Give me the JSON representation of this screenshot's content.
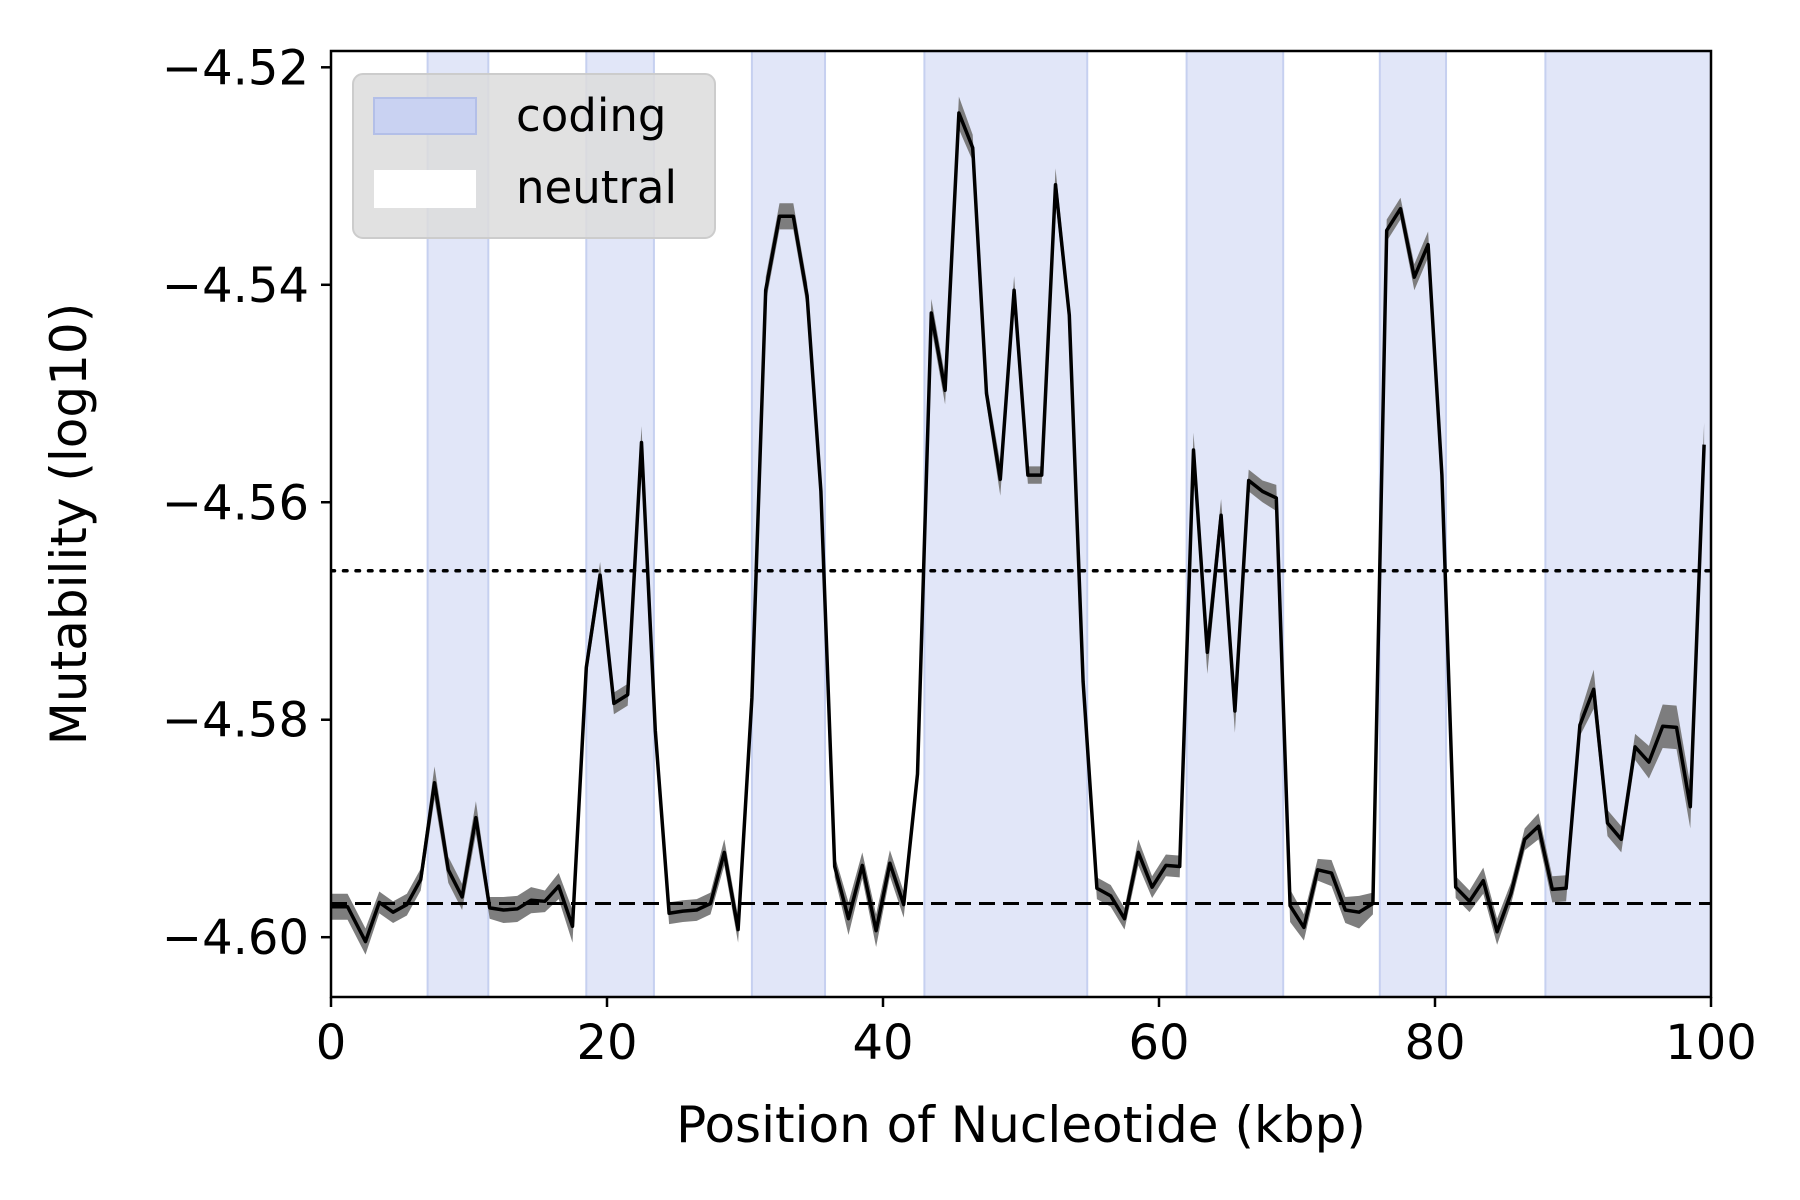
{
  "chart_data": {
    "type": "line",
    "title": "",
    "xlabel": "Position of Nucleotide (kbp)",
    "ylabel": "Mutability (log10)",
    "xlim": [
      0,
      100
    ],
    "ylim": [
      -4.6055,
      -4.5185
    ],
    "xticks": [
      0,
      20,
      40,
      60,
      80,
      100
    ],
    "xtick_labels": [
      "0",
      "20",
      "40",
      "60",
      "80",
      "100"
    ],
    "yticks": [
      -4.52,
      -4.54,
      -4.56,
      -4.58,
      -4.6
    ],
    "ytick_labels": [
      "−4.52",
      "−4.54",
      "−4.56",
      "−4.58",
      "−4.60"
    ],
    "grid": false,
    "legend": {
      "placement": "upper-left",
      "entries": [
        {
          "label": "coding",
          "color": "#c9d2f2"
        },
        {
          "label": "neutral",
          "color": "#ffffff"
        }
      ]
    },
    "coding_regions": [
      [
        7,
        11.4
      ],
      [
        18.5,
        23.4
      ],
      [
        30.5,
        35.8
      ],
      [
        43,
        54.8
      ],
      [
        62,
        69
      ],
      [
        76,
        80.8
      ],
      [
        88,
        100
      ]
    ],
    "reference_lines": [
      {
        "y": -4.5663,
        "style": "dotted"
      },
      {
        "y": -4.5969,
        "style": "dashed"
      }
    ],
    "colors": {
      "coding_fill": "#e1e6f8",
      "coding_edge": "#c6d0f0",
      "band": "#777777",
      "line": "#000000"
    },
    "series": [
      {
        "x": [
          0,
          1.2,
          2.5,
          3.5,
          4.5,
          5.5,
          6.5,
          7.5,
          8.5,
          9.5,
          10.5,
          11.5,
          12.5,
          13.5,
          14.5,
          15.5,
          16.5,
          17.5,
          18.5,
          19.5,
          20.5,
          21.5,
          22.5,
          23.5,
          24.5,
          25.5,
          26.5,
          27.5,
          28.5,
          29.5,
          30.5,
          31.5,
          32.5,
          33.5,
          34.5,
          35.5,
          36.5,
          37.5,
          38.5,
          39.5,
          40.5,
          41.5,
          42.5,
          43.5,
          44.5,
          45.5,
          46.5,
          47.5,
          48.5,
          49.5,
          50.5,
          51.5,
          52.5,
          53.5,
          54.5,
          55.5,
          56.5,
          57.5,
          58.5,
          59.5,
          60.5,
          61.5,
          62.5,
          63.5,
          64.5,
          65.5,
          66.5,
          67.5,
          68.5,
          69.5,
          70.5,
          71.5,
          72.5,
          73.5,
          74.5,
          75.5,
          76.5,
          77.5,
          78.5,
          79.5,
          80.5,
          81.5,
          82.5,
          83.5,
          84.5,
          85.5,
          86.5,
          87.5,
          88.5,
          89.5,
          90.5,
          91.5,
          92.5,
          93.5,
          94.5,
          95.5,
          96.5,
          97.5,
          98.5,
          99.5
        ],
        "values": [
          -4.5972,
          -4.5972,
          -4.6004,
          -4.5968,
          -4.5977,
          -4.597,
          -4.5947,
          -4.5858,
          -4.5938,
          -4.5963,
          -4.589,
          -4.5973,
          -4.5975,
          -4.5974,
          -4.5966,
          -4.5967,
          -4.5953,
          -4.599,
          -4.5752,
          -4.5667,
          -4.5785,
          -4.5777,
          -4.5545,
          -4.581,
          -4.5978,
          -4.5976,
          -4.5975,
          -4.5969,
          -4.5922,
          -4.5993,
          -4.578,
          -4.5405,
          -4.5337,
          -4.5337,
          -4.541,
          -4.559,
          -4.5935,
          -4.5983,
          -4.5934,
          -4.5994,
          -4.5932,
          -4.597,
          -4.585,
          -4.5426,
          -4.5497,
          -4.5242,
          -4.5274,
          -4.55,
          -4.5579,
          -4.5405,
          -4.5575,
          -4.5575,
          -4.5308,
          -4.5428,
          -4.5765,
          -4.5955,
          -4.5962,
          -4.5983,
          -4.5922,
          -4.5954,
          -4.5934,
          -4.5935,
          -4.5552,
          -4.5738,
          -4.5612,
          -4.5792,
          -4.558,
          -4.559,
          -4.5596,
          -4.5971,
          -4.5991,
          -4.5938,
          -4.5941,
          -4.5975,
          -4.5977,
          -4.5969,
          -4.535,
          -4.533,
          -4.5393,
          -4.5363,
          -4.5575,
          -4.5954,
          -4.5967,
          -4.5948,
          -4.5995,
          -4.596,
          -4.591,
          -4.5898,
          -4.5956,
          -4.5955,
          -4.5805,
          -4.5772,
          -4.5895,
          -4.591,
          -4.5825,
          -4.5839,
          -4.5806,
          -4.5807,
          -4.588,
          -4.5547
        ],
        "band_halfwidth": [
          0.0012,
          0.0012,
          0.0012,
          0.001,
          0.001,
          0.001,
          0.001,
          0.0015,
          0.0012,
          0.0012,
          0.0015,
          0.001,
          0.0012,
          0.0012,
          0.0012,
          0.001,
          0.0012,
          0.0015,
          0.001,
          0.0012,
          0.001,
          0.001,
          0.0015,
          0.0012,
          0.001,
          0.001,
          0.001,
          0.001,
          0.0012,
          0.0012,
          0.001,
          0.0012,
          0.0012,
          0.0012,
          0.0012,
          0.0012,
          0.001,
          0.0015,
          0.0012,
          0.0015,
          0.0012,
          0.0012,
          0.001,
          0.0013,
          0.0013,
          0.0015,
          0.0012,
          0.001,
          0.0015,
          0.0013,
          0.0008,
          0.0008,
          0.0015,
          0.0012,
          0.001,
          0.001,
          0.001,
          0.001,
          0.0012,
          0.001,
          0.001,
          0.001,
          0.0016,
          0.002,
          0.0015,
          0.002,
          0.001,
          0.001,
          0.0012,
          0.0015,
          0.0012,
          0.001,
          0.0012,
          0.0012,
          0.0015,
          0.001,
          0.001,
          0.001,
          0.0012,
          0.0012,
          0.0012,
          0.001,
          0.001,
          0.0012,
          0.0012,
          0.001,
          0.001,
          0.0012,
          0.0012,
          0.0012,
          0.001,
          0.0018,
          0.0012,
          0.0012,
          0.0012,
          0.0015,
          0.002,
          0.002,
          0.002,
          0.002
        ]
      }
    ]
  }
}
